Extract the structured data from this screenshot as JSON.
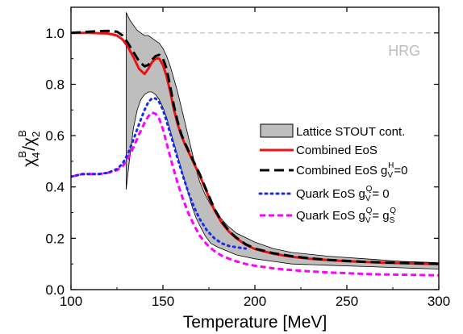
{
  "chart_data": {
    "type": "line",
    "title": "",
    "xlabel": "Temperature [MeV]",
    "ylabel": "χ4B/χ2B",
    "ylabel_parts": {
      "chi": "χ",
      "sub1": "4",
      "sup1": "B",
      "slash": "/",
      "sub2": "2",
      "sup2": "B"
    },
    "xlim": [
      100,
      300
    ],
    "ylim": [
      0.0,
      1.1
    ],
    "xticks": [
      100,
      150,
      200,
      250,
      300
    ],
    "yticks": [
      0.0,
      0.2,
      0.4,
      0.6,
      0.8,
      1.0
    ],
    "xtick_labels": [
      "100",
      "150",
      "200",
      "250",
      "300"
    ],
    "ytick_labels": [
      "0.0",
      "0.2",
      "0.4",
      "0.6",
      "0.8",
      "1.0"
    ],
    "grid": false,
    "legend_position": "center-right",
    "annotations": [
      {
        "text": "HRG",
        "x": 290,
        "y": 0.93
      }
    ],
    "reference_line": {
      "y": 1.0,
      "style": "dashed",
      "color": "#c8c8c8"
    },
    "band": {
      "name": "Lattice STOUT cont.",
      "color": "#bebebe",
      "x": [
        130,
        132,
        134,
        136,
        138,
        140,
        142,
        144,
        146,
        148,
        150,
        152,
        154,
        156,
        158,
        160,
        162,
        164,
        166,
        168,
        170,
        173,
        176,
        180,
        185,
        190,
        200,
        210,
        220,
        240,
        260,
        280,
        300
      ],
      "upper": [
        1.08,
        1.05,
        1.03,
        1.01,
        1.0,
        0.99,
        0.99,
        0.98,
        0.97,
        0.96,
        0.94,
        0.91,
        0.87,
        0.82,
        0.77,
        0.71,
        0.65,
        0.59,
        0.53,
        0.47,
        0.42,
        0.37,
        0.33,
        0.29,
        0.25,
        0.22,
        0.185,
        0.16,
        0.145,
        0.13,
        0.12,
        0.11,
        0.105
      ],
      "lower": [
        0.39,
        0.52,
        0.63,
        0.7,
        0.74,
        0.76,
        0.77,
        0.77,
        0.76,
        0.74,
        0.71,
        0.67,
        0.62,
        0.57,
        0.52,
        0.47,
        0.42,
        0.37,
        0.32,
        0.28,
        0.25,
        0.21,
        0.18,
        0.165,
        0.15,
        0.135,
        0.12,
        0.11,
        0.1,
        0.095,
        0.09,
        0.085,
        0.08
      ]
    },
    "series": [
      {
        "name": "Combined EoS",
        "color": "#ee1111",
        "dash": "solid",
        "x": [
          100,
          110,
          120,
          125,
          128,
          131,
          134,
          137,
          140,
          142,
          144,
          146,
          148,
          150,
          152,
          154,
          156,
          158,
          160,
          162,
          164,
          166,
          168,
          170,
          172,
          175,
          178,
          182,
          186,
          190,
          195,
          200,
          210,
          220,
          230,
          240,
          250,
          260,
          270,
          280,
          290,
          300
        ],
        "y": [
          1.0,
          1.0,
          0.998,
          0.99,
          0.975,
          0.945,
          0.905,
          0.86,
          0.84,
          0.86,
          0.885,
          0.9,
          0.9,
          0.875,
          0.83,
          0.77,
          0.7,
          0.645,
          0.6,
          0.565,
          0.535,
          0.505,
          0.475,
          0.445,
          0.41,
          0.36,
          0.31,
          0.26,
          0.225,
          0.2,
          0.175,
          0.158,
          0.14,
          0.128,
          0.12,
          0.115,
          0.111,
          0.108,
          0.105,
          0.103,
          0.101,
          0.1
        ]
      },
      {
        "name": "Combined EoS g",
        "name_sub": "V",
        "name_sup": "H",
        "name_suffix": "=0",
        "color": "#000000",
        "dash": "long",
        "x": [
          100,
          110,
          120,
          125,
          128,
          131,
          134,
          137,
          140,
          142,
          144,
          146,
          148,
          150,
          152,
          154,
          156,
          158,
          160,
          162,
          164,
          166,
          168,
          170,
          172,
          175,
          178,
          182,
          186,
          190,
          195,
          200,
          210,
          220,
          230,
          240,
          250,
          260,
          270,
          280,
          290,
          300
        ],
        "y": [
          1.0,
          1.005,
          1.008,
          1.005,
          0.99,
          0.96,
          0.925,
          0.89,
          0.87,
          0.875,
          0.895,
          0.91,
          0.915,
          0.9,
          0.86,
          0.79,
          0.715,
          0.655,
          0.605,
          0.57,
          0.54,
          0.51,
          0.48,
          0.45,
          0.415,
          0.365,
          0.315,
          0.265,
          0.228,
          0.202,
          0.177,
          0.16,
          0.142,
          0.13,
          0.122,
          0.116,
          0.112,
          0.108,
          0.106,
          0.104,
          0.102,
          0.1
        ]
      },
      {
        "name": "Quark EoS g",
        "name_sub": "V",
        "name_sup": "Q",
        "name_suffix": "= 0",
        "color": "#1a2be8",
        "dash": "dotted",
        "x": [
          100,
          103,
          106,
          110,
          115,
          120,
          125,
          128,
          131,
          134,
          137,
          140,
          142,
          144,
          146,
          148,
          150,
          152,
          155,
          158,
          161,
          164,
          167,
          170,
          174,
          178,
          182,
          186,
          190,
          195
        ],
        "y": [
          0.44,
          0.445,
          0.45,
          0.45,
          0.45,
          0.455,
          0.47,
          0.49,
          0.53,
          0.585,
          0.645,
          0.7,
          0.73,
          0.745,
          0.745,
          0.73,
          0.7,
          0.655,
          0.585,
          0.51,
          0.44,
          0.375,
          0.32,
          0.275,
          0.23,
          0.2,
          0.18,
          0.17,
          0.165,
          0.16
        ]
      },
      {
        "name": "Quark EoS g",
        "name_sub": "V",
        "name_sup": "Q",
        "name_mid": "= g",
        "name_sub2": "S",
        "name_sup2": "Q",
        "color": "#ff00ff",
        "dash": "dashed",
        "x": [
          100,
          103,
          106,
          110,
          115,
          120,
          125,
          128,
          131,
          134,
          137,
          140,
          142,
          144,
          146,
          148,
          150,
          152,
          155,
          158,
          161,
          164,
          167,
          170,
          174,
          178,
          182,
          186,
          190,
          195,
          200,
          210,
          220,
          230,
          240,
          250,
          260,
          270,
          280,
          290,
          300
        ],
        "y": [
          0.44,
          0.445,
          0.45,
          0.45,
          0.45,
          0.455,
          0.465,
          0.48,
          0.51,
          0.555,
          0.605,
          0.65,
          0.675,
          0.69,
          0.685,
          0.665,
          0.625,
          0.57,
          0.49,
          0.415,
          0.35,
          0.295,
          0.25,
          0.21,
          0.175,
          0.15,
          0.132,
          0.12,
          0.11,
          0.1,
          0.093,
          0.083,
          0.076,
          0.071,
          0.067,
          0.064,
          0.061,
          0.059,
          0.058,
          0.057,
          0.056
        ]
      }
    ]
  }
}
